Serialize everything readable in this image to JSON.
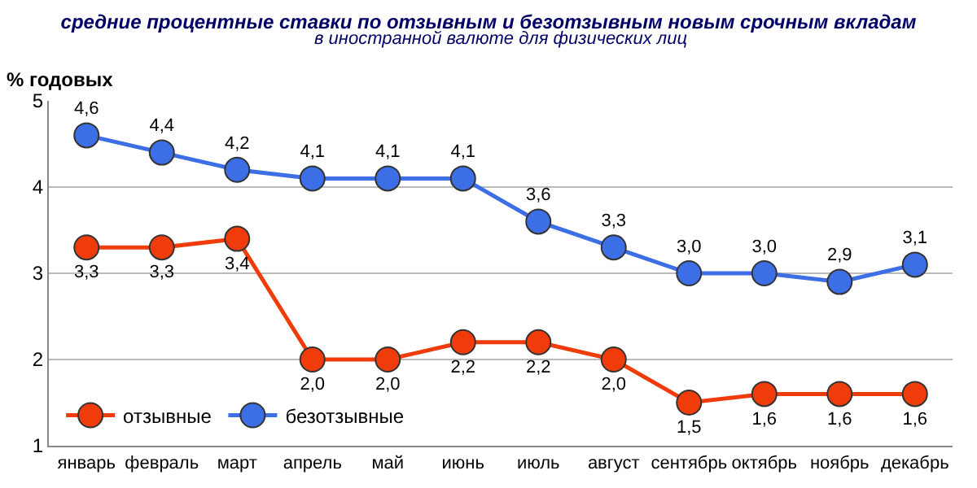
{
  "chart_data": {
    "type": "line",
    "title": "средние процентные ставки по отзывным и безотзывным новым срочным вкладам",
    "subtitle": "в иностранной валюте для физических лиц",
    "ylabel": "% годовых",
    "categories": [
      "январь",
      "февраль",
      "март",
      "апрель",
      "май",
      "июнь",
      "июль",
      "август",
      "сентябрь",
      "октябрь",
      "ноябрь",
      "декабрь"
    ],
    "series": [
      {
        "name": "отзывные",
        "color": "#f03c0a",
        "values": [
          3.3,
          3.3,
          3.4,
          2.0,
          2.0,
          2.2,
          2.2,
          2.0,
          1.5,
          1.6,
          1.6,
          1.6
        ],
        "value_labels": [
          "3,3",
          "3,3",
          "3,4",
          "2,0",
          "2,0",
          "2,2",
          "2,2",
          "2,0",
          "1,5",
          "1,6",
          "1,6",
          "1,6"
        ]
      },
      {
        "name": "безотзывные",
        "color": "#3c6ee6",
        "values": [
          4.6,
          4.4,
          4.2,
          4.1,
          4.1,
          4.1,
          3.6,
          3.3,
          3.0,
          3.0,
          2.9,
          3.1
        ],
        "value_labels": [
          "4,6",
          "4,4",
          "4,2",
          "4,1",
          "4,1",
          "4,1",
          "3,6",
          "3,3",
          "3,0",
          "3,0",
          "2,9",
          "3,1"
        ]
      }
    ],
    "ylim": [
      1,
      5
    ],
    "yticks": [
      1,
      2,
      3,
      4,
      5
    ],
    "grid": "y",
    "legend": "bottom left",
    "marker": "circle",
    "line_style": "solid"
  }
}
